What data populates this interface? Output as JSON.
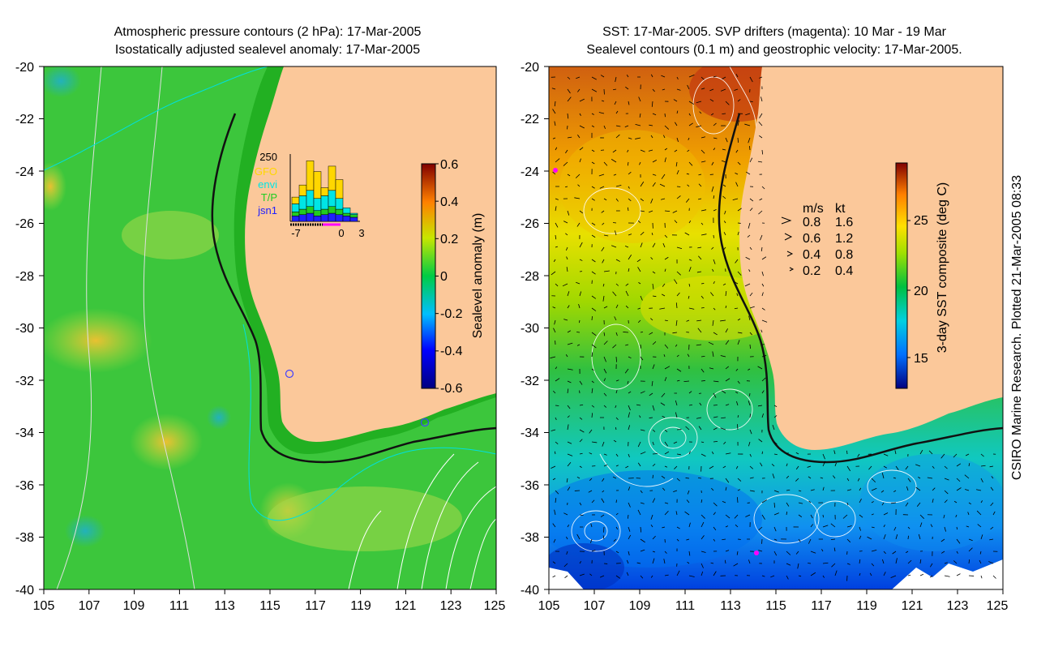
{
  "left_panel": {
    "title_line1": "Atmospheric pressure contours (2 hPa): 17-Mar-2005",
    "title_line2": "Isostatically adjusted sealevel anomaly: 17-Mar-2005",
    "colorbar": {
      "label": "Sealevel anomaly (m)",
      "ticks": [
        "0.6",
        "0.4",
        "0.2",
        "0",
        "-0.2",
        "-0.4",
        "-0.6"
      ]
    },
    "inset": {
      "ymax_label": "250",
      "legend": [
        "GFO",
        "envi",
        "T/P",
        "jsn1"
      ],
      "legend_colors": [
        "#ffd700",
        "#00e5e5",
        "#22cc22",
        "#2020ff"
      ],
      "xticks": [
        "-7",
        "0",
        "3"
      ],
      "bars": [
        {
          "jsn1": 20,
          "tp": 15,
          "envi": 30,
          "gfo": 25
        },
        {
          "jsn1": 25,
          "tp": 20,
          "envi": 50,
          "gfo": 40
        },
        {
          "jsn1": 30,
          "tp": 25,
          "envi": 60,
          "gfo": 110
        },
        {
          "jsn1": 20,
          "tp": 20,
          "envi": 45,
          "gfo": 100
        },
        {
          "jsn1": 25,
          "tp": 20,
          "envi": 50,
          "gfo": 30
        },
        {
          "jsn1": 30,
          "tp": 25,
          "envi": 60,
          "gfo": 90
        },
        {
          "jsn1": 25,
          "tp": 20,
          "envi": 40,
          "gfo": 70
        },
        {
          "jsn1": 20,
          "tp": 10,
          "envi": 20,
          "gfo": 0
        },
        {
          "jsn1": 15,
          "tp": 10,
          "envi": 5,
          "gfo": 0
        }
      ]
    }
  },
  "right_panel": {
    "title_line1": "SST: 17-Mar-2005. SVP drifters (magenta): 10 Mar - 19 Mar",
    "title_line2": "Sealevel contours (0.1 m) and geostrophic velocity: 17-Mar-2005.",
    "colorbar": {
      "label": "3-day SST composite (deg C)",
      "ticks": [
        "25",
        "20",
        "15"
      ]
    },
    "velocity_key": {
      "header_ms": "m/s",
      "header_kt": "kt",
      "rows": [
        {
          "ms": "0.8",
          "kt": "1.6"
        },
        {
          "ms": "0.6",
          "kt": "1.2"
        },
        {
          "ms": "0.4",
          "kt": "0.8"
        },
        {
          "ms": "0.2",
          "kt": "0.4"
        }
      ]
    }
  },
  "axes": {
    "lat_ticks": [
      "-20",
      "-22",
      "-24",
      "-26",
      "-28",
      "-30",
      "-32",
      "-34",
      "-36",
      "-38",
      "-40"
    ],
    "lon_ticks": [
      "105",
      "107",
      "109",
      "111",
      "113",
      "115",
      "117",
      "119",
      "121",
      "123",
      "125"
    ]
  },
  "credit": "CSIRO Marine Research. Plotted 21-Mar-2005 08:33",
  "colors": {
    "land": "#fbc89a",
    "coast_shelf": "#22b022",
    "ocean_base": "#3cc63c"
  }
}
